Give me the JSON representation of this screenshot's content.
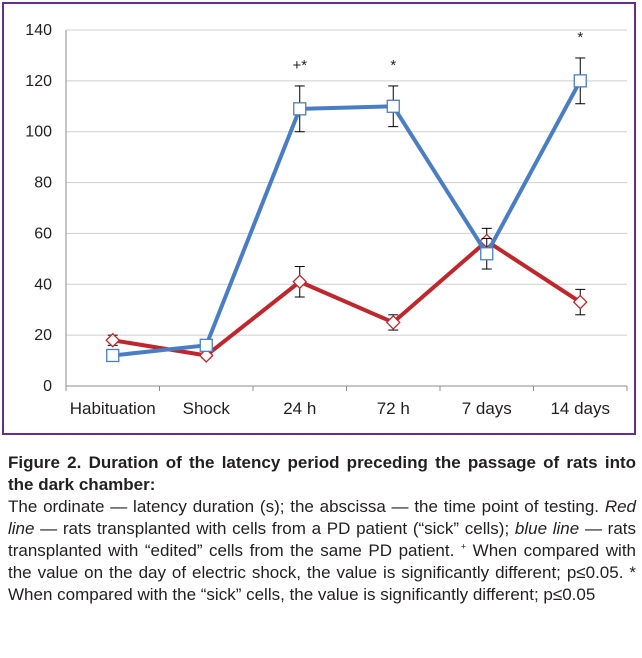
{
  "colors": {
    "frame": "#6a2c8e",
    "grid": "#cfcfcf",
    "axis": "#8c8c8c",
    "red_series": "#c0272d",
    "blue_series": "#4a7ec4",
    "text": "#231f20"
  },
  "chart_data": {
    "type": "line",
    "categories": [
      "Habituation",
      "Shock",
      "24 h",
      "72 h",
      "7 days",
      "14 days"
    ],
    "ylim": [
      0,
      140
    ],
    "yticks": [
      0,
      20,
      40,
      60,
      80,
      100,
      120,
      140
    ],
    "grid": true,
    "series": [
      {
        "color": "red",
        "marker": "diamond",
        "values": [
          18,
          12,
          41,
          25,
          57,
          33
        ],
        "errors": [
          2,
          1,
          6,
          3,
          5,
          5
        ]
      },
      {
        "color": "blue",
        "marker": "square",
        "values": [
          12,
          16,
          109,
          110,
          52,
          120
        ],
        "errors": [
          1,
          1,
          9,
          8,
          6,
          9
        ]
      }
    ],
    "annotations": [
      {
        "category": "24 h",
        "text": "+*"
      },
      {
        "category": "72 h",
        "text": "*"
      },
      {
        "category": "14 days",
        "text": "*"
      }
    ]
  },
  "caption": {
    "title": "Figure 2. Duration of the latency period preceding the passage of rats into the dark chamber:",
    "part1": "The ordinate — latency duration (s); the abscissa — the time point of testing. ",
    "red_label": "Red line",
    "part2": " — rats transplanted with cells from a PD patient (“sick” cells); ",
    "blue_label": "blue line",
    "part3": " — rats transplanted with “edited” cells from the same PD patient. ",
    "plus_mark": "+",
    "part4": " When compared with the value on the day of electric shock, the value is significantly different; p≤0.05. * When compared with the “sick” cells, the value is significantly different; p≤0.05"
  }
}
